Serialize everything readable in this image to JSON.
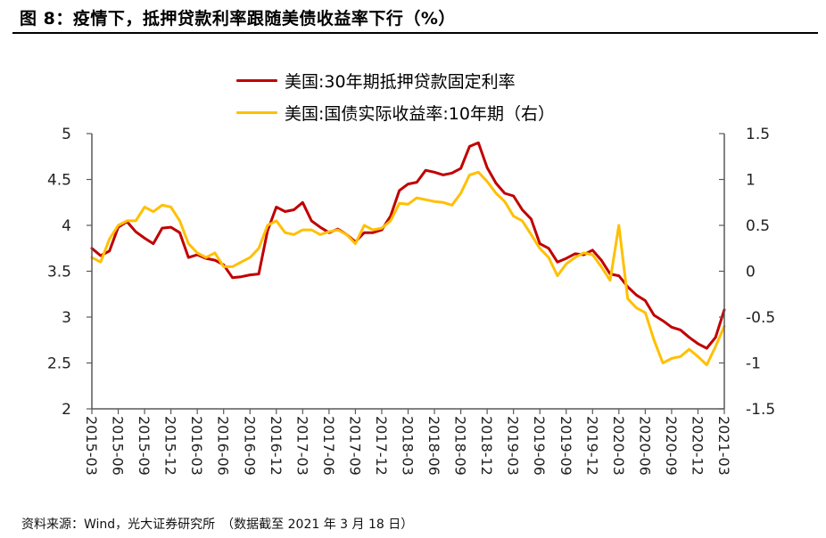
{
  "figure": {
    "title": "图 8：疫情下，抵押贷款利率跟随美债收益率下行（%）",
    "source": "资料来源：Wind，光大证券研究所　（数据截至 2021 年 3 月 18 日）"
  },
  "colors": {
    "mortgage": "#C00000",
    "real_yield": "#FFC000",
    "axis": "#595959"
  },
  "chart_data": {
    "type": "line",
    "title": "疫情下，抵押贷款利率跟随美债收益率下行（%）",
    "xlabel": "",
    "ylabel": "",
    "ylim": [
      2,
      5
    ],
    "y2lim": [
      -1.5,
      1.5
    ],
    "yticks": [
      "5",
      "4.5",
      "4",
      "3.5",
      "3",
      "2.5",
      "2"
    ],
    "y2ticks": [
      "1.5",
      "1",
      "0.5",
      "0",
      "-0.5",
      "-1",
      "-1.5"
    ],
    "grid": false,
    "legend_position": "top-center",
    "x_tick_labels": [
      "2015-03",
      "2015-06",
      "2015-09",
      "2015-12",
      "2016-03",
      "2016-06",
      "2016-09",
      "2016-12",
      "2017-03",
      "2017-06",
      "2017-09",
      "2017-12",
      "2018-03",
      "2018-06",
      "2018-09",
      "2018-12",
      "2019-03",
      "2019-06",
      "2019-09",
      "2019-12",
      "2020-03",
      "2020-06",
      "2020-09",
      "2020-12",
      "2021-03"
    ],
    "x": [
      "2015-03",
      "2015-04",
      "2015-05",
      "2015-06",
      "2015-07",
      "2015-08",
      "2015-09",
      "2015-10",
      "2015-11",
      "2015-12",
      "2016-01",
      "2016-02",
      "2016-03",
      "2016-04",
      "2016-05",
      "2016-06",
      "2016-07",
      "2016-08",
      "2016-09",
      "2016-10",
      "2016-11",
      "2016-12",
      "2017-01",
      "2017-02",
      "2017-03",
      "2017-04",
      "2017-05",
      "2017-06",
      "2017-07",
      "2017-08",
      "2017-09",
      "2017-10",
      "2017-11",
      "2017-12",
      "2018-01",
      "2018-02",
      "2018-03",
      "2018-04",
      "2018-05",
      "2018-06",
      "2018-07",
      "2018-08",
      "2018-09",
      "2018-10",
      "2018-11",
      "2018-12",
      "2019-01",
      "2019-02",
      "2019-03",
      "2019-04",
      "2019-05",
      "2019-06",
      "2019-07",
      "2019-08",
      "2019-09",
      "2019-10",
      "2019-11",
      "2019-12",
      "2020-01",
      "2020-02",
      "2020-03",
      "2020-04",
      "2020-05",
      "2020-06",
      "2020-07",
      "2020-08",
      "2020-09",
      "2020-10",
      "2020-11",
      "2020-12",
      "2021-01",
      "2021-02",
      "2021-03"
    ],
    "series": [
      {
        "name": "美国:30年期抵押贷款固定利率",
        "axis": "left",
        "values": [
          3.75,
          3.67,
          3.72,
          3.98,
          4.04,
          3.93,
          3.86,
          3.8,
          3.97,
          3.98,
          3.92,
          3.65,
          3.68,
          3.64,
          3.62,
          3.57,
          3.43,
          3.44,
          3.46,
          3.47,
          3.94,
          4.2,
          4.15,
          4.17,
          4.25,
          4.05,
          3.98,
          3.92,
          3.96,
          3.9,
          3.82,
          3.92,
          3.92,
          3.95,
          4.1,
          4.38,
          4.45,
          4.47,
          4.6,
          4.58,
          4.55,
          4.57,
          4.62,
          4.86,
          4.9,
          4.63,
          4.46,
          4.35,
          4.32,
          4.17,
          4.07,
          3.8,
          3.75,
          3.6,
          3.64,
          3.69,
          3.68,
          3.73,
          3.62,
          3.47,
          3.45,
          3.33,
          3.24,
          3.18,
          3.02,
          2.96,
          2.89,
          2.86,
          2.78,
          2.71,
          2.66,
          2.78,
          3.08
        ]
      },
      {
        "name": "美国:国债实际收益率:10年期（右）",
        "axis": "right",
        "values": [
          0.15,
          0.1,
          0.35,
          0.5,
          0.55,
          0.55,
          0.7,
          0.65,
          0.72,
          0.7,
          0.55,
          0.3,
          0.2,
          0.15,
          0.2,
          0.05,
          0.05,
          0.1,
          0.15,
          0.25,
          0.5,
          0.55,
          0.42,
          0.4,
          0.45,
          0.45,
          0.4,
          0.43,
          0.45,
          0.4,
          0.3,
          0.5,
          0.45,
          0.47,
          0.55,
          0.74,
          0.73,
          0.8,
          0.78,
          0.76,
          0.75,
          0.72,
          0.85,
          1.05,
          1.08,
          0.98,
          0.85,
          0.76,
          0.6,
          0.55,
          0.4,
          0.25,
          0.15,
          -0.05,
          0.08,
          0.15,
          0.2,
          0.18,
          0.05,
          -0.1,
          0.5,
          -0.3,
          -0.4,
          -0.45,
          -0.75,
          -1.0,
          -0.95,
          -0.93,
          -0.85,
          -0.93,
          -1.02,
          -0.82,
          -0.6
        ]
      }
    ]
  },
  "legend": {
    "items": [
      {
        "label": "美国:30年期抵押贷款固定利率",
        "color": "#C00000"
      },
      {
        "label": "美国:国债实际收益率:10年期（右）",
        "color": "#FFC000"
      }
    ]
  }
}
